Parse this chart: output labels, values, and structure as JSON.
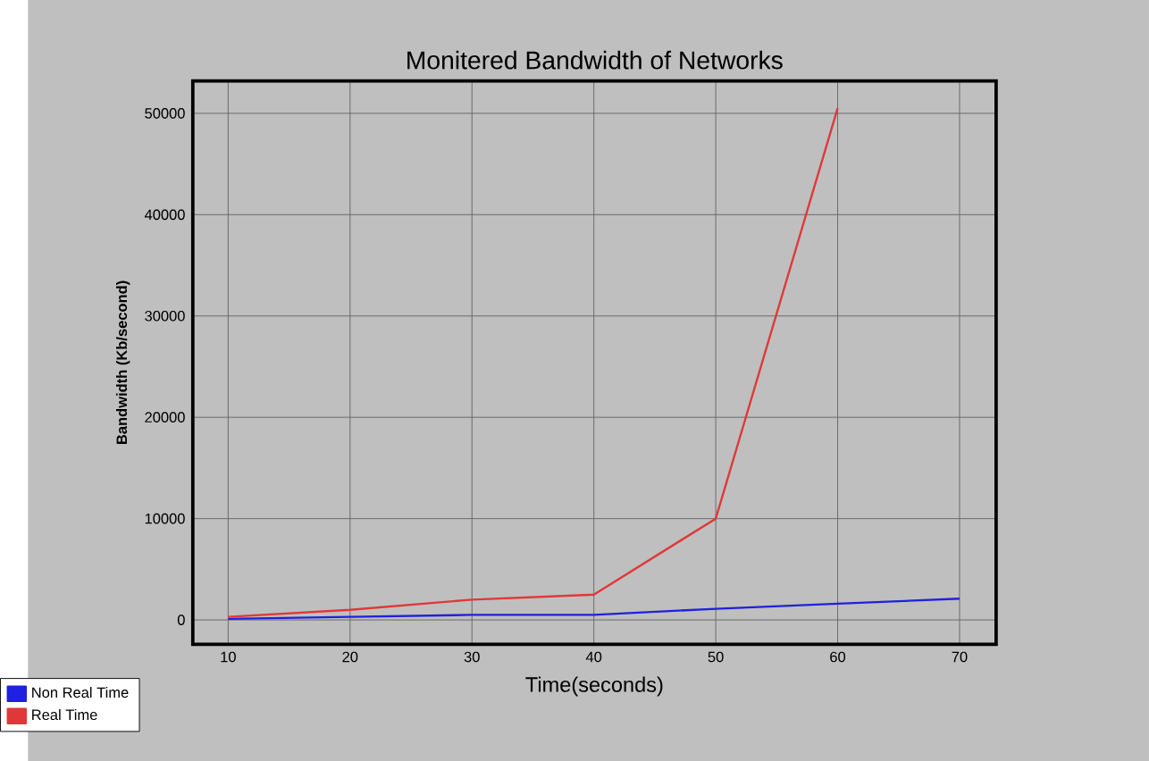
{
  "chart_data": {
    "type": "line",
    "title": "Monitered Bandwidth of Networks",
    "xlabel": "Time(seconds)",
    "ylabel": "Bandwidth (Kb/second)",
    "xlim": [
      7.1,
      73
    ],
    "ylim": [
      -2400,
      53200
    ],
    "xticks": [
      10,
      20,
      30,
      40,
      50,
      60,
      70
    ],
    "yticks": [
      0,
      10000,
      20000,
      30000,
      40000,
      50000
    ],
    "grid": true,
    "legend": "bottom left",
    "marker": "none",
    "line_style": "solid",
    "series": [
      {
        "name": "Non Real Time",
        "color": "#2020e0",
        "x": [
          10,
          20,
          30,
          40,
          50,
          60,
          70
        ],
        "values": [
          100,
          300,
          500,
          500,
          1100,
          1600,
          2100
        ]
      },
      {
        "name": "Real Time",
        "color": "#e03838",
        "x": [
          10,
          20,
          30,
          40,
          50,
          60
        ],
        "values": [
          300,
          1000,
          2000,
          2500,
          10000,
          50500
        ]
      }
    ]
  }
}
